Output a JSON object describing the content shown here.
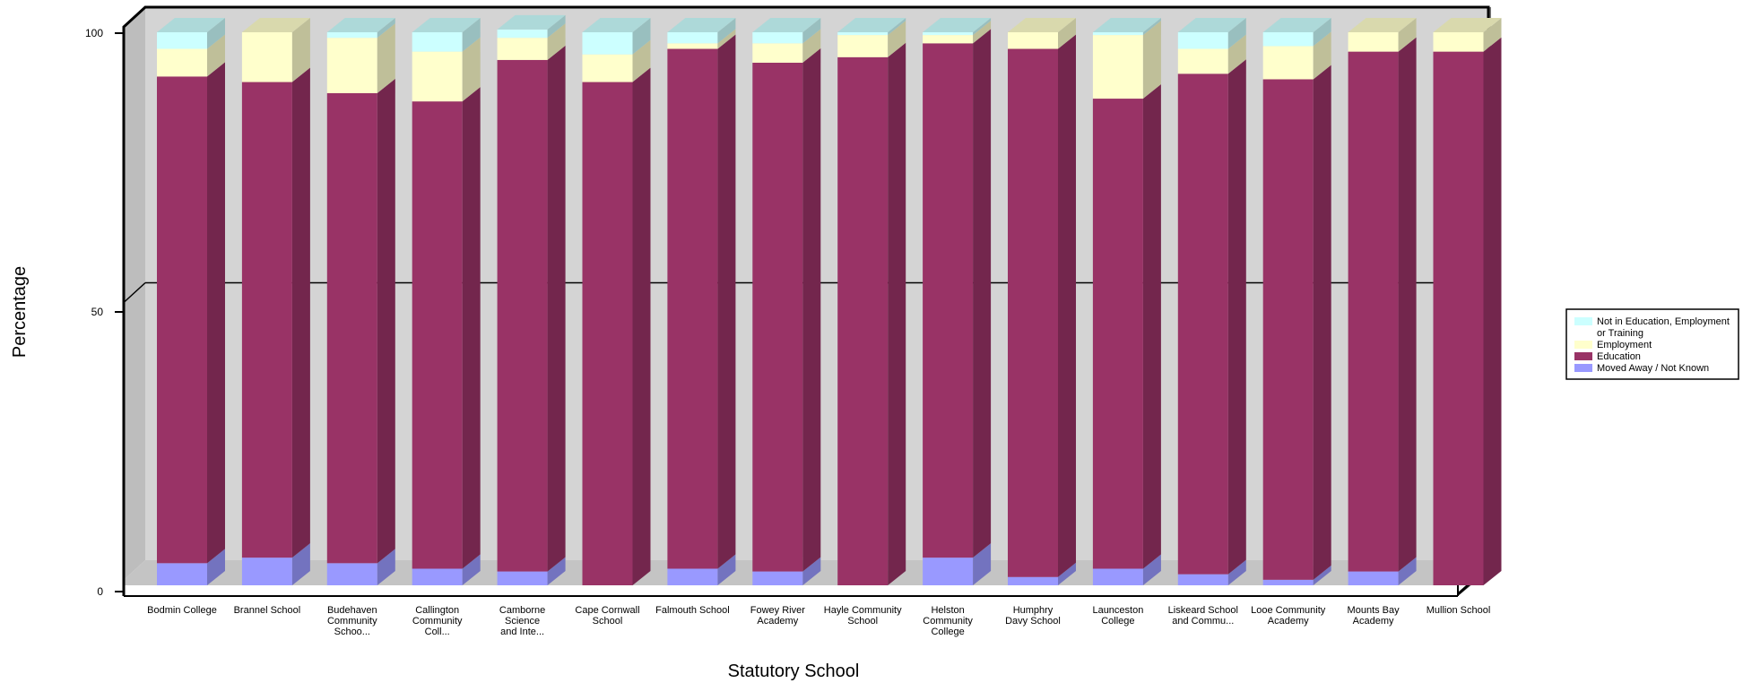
{
  "chart_data": {
    "type": "bar",
    "stacked": true,
    "three_d": true,
    "xlabel": "Statutory School",
    "ylabel": "Percentage",
    "ylim": [
      0,
      100
    ],
    "yticks": [
      0,
      50,
      100
    ],
    "categories": [
      [
        "Bodmin College"
      ],
      [
        "Brannel School"
      ],
      [
        "Budehaven",
        "Community",
        "Schoo..."
      ],
      [
        "Callington",
        "Community",
        "Coll..."
      ],
      [
        "Camborne",
        "Science",
        "and Inte..."
      ],
      [
        "Cape Cornwall",
        "School"
      ],
      [
        "Falmouth School"
      ],
      [
        "Fowey River",
        "Academy"
      ],
      [
        "Hayle Community",
        "School"
      ],
      [
        "Helston",
        "Community",
        "College"
      ],
      [
        "Humphry",
        "Davy School"
      ],
      [
        "Launceston",
        "College"
      ],
      [
        "Liskeard School",
        "and Commu..."
      ],
      [
        "Looe Community",
        "Academy"
      ],
      [
        "Mounts Bay",
        "Academy"
      ],
      [
        "Mullion School"
      ]
    ],
    "series": [
      {
        "name": "Moved Away / Not Known",
        "color": "#9999ff",
        "values": [
          4,
          5,
          4,
          3,
          2.5,
          0,
          3,
          2.5,
          0,
          5,
          1.5,
          3,
          2,
          1,
          2.5,
          0
        ]
      },
      {
        "name": "Education",
        "color": "#993366",
        "values": [
          88,
          86,
          85,
          84.5,
          92.5,
          91,
          94,
          92,
          95.5,
          93,
          95.5,
          85,
          90.5,
          90.5,
          94,
          96.5
        ]
      },
      {
        "name": "Employment",
        "color": "#ffffcc",
        "values": [
          5,
          9,
          10,
          9,
          4,
          5,
          1,
          3.5,
          4,
          1.5,
          3,
          11.5,
          4.5,
          6,
          3.5,
          3.5
        ]
      },
      {
        "name": "Not in Education, Employment or Training",
        "color": "#ccffff",
        "values": [
          3,
          0,
          1,
          3.5,
          1.5,
          4,
          2,
          2,
          0.5,
          0.5,
          0,
          0.5,
          3,
          2.5,
          0,
          0
        ]
      }
    ],
    "legend": {
      "position": "right",
      "entries": [
        {
          "lines": [
            "Not in Education, Employment",
            "or Training"
          ],
          "color": "#ccffff"
        },
        {
          "lines": [
            "Employment"
          ],
          "color": "#ffffcc"
        },
        {
          "lines": [
            "Education"
          ],
          "color": "#993366"
        },
        {
          "lines": [
            "Moved Away / Not Known"
          ],
          "color": "#9999ff"
        }
      ]
    },
    "wall_color": "#d4d4d4",
    "gridline_at": 50
  }
}
